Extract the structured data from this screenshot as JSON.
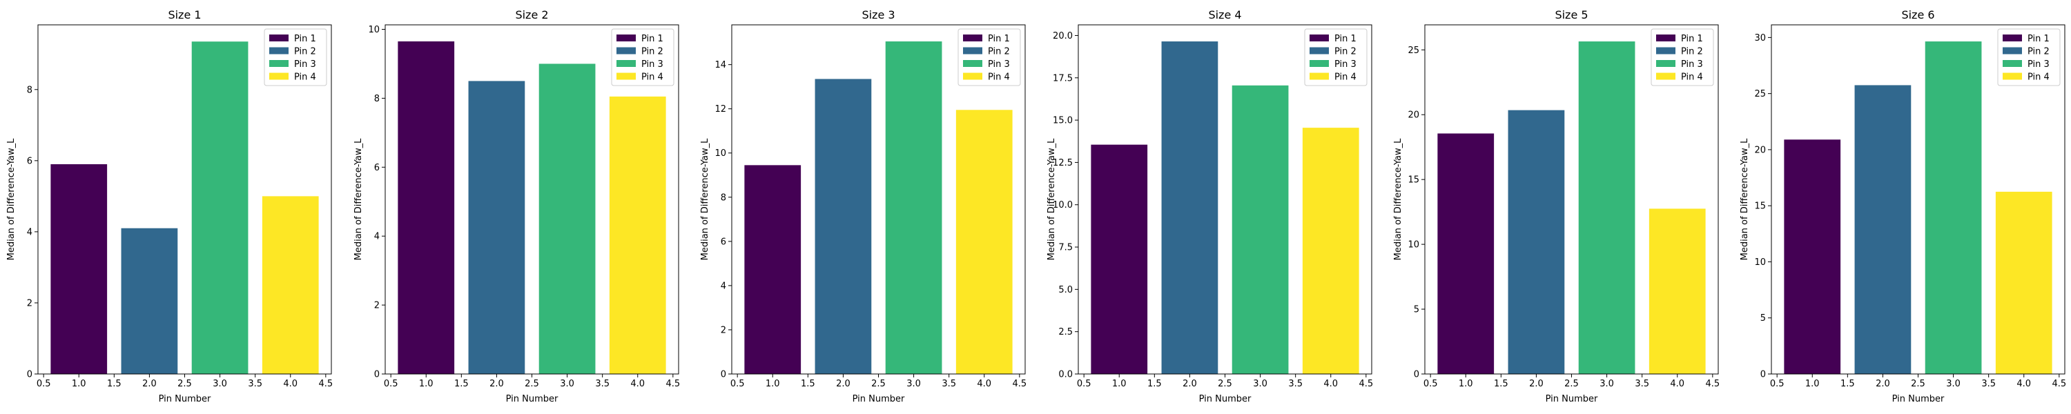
{
  "chart_data": [
    {
      "type": "bar",
      "title": "Size 1",
      "xlabel": "Pin Number",
      "ylabel": "Median of Difference-Yaw_L",
      "x": [
        1.0,
        2.0,
        3.0,
        4.0
      ],
      "values": [
        5.9,
        4.1,
        9.35,
        5.0
      ],
      "legend": [
        "Pin 1",
        "Pin 2",
        "Pin 3",
        "Pin 4"
      ],
      "xlim": [
        0.42,
        4.58
      ],
      "xticks": [
        0.5,
        1.0,
        1.5,
        2.0,
        2.5,
        3.0,
        3.5,
        4.0,
        4.5
      ],
      "xtick_labels": [
        "0.5",
        "1.0",
        "1.5",
        "2.0",
        "2.5",
        "3.0",
        "3.5",
        "4.0",
        "4.5"
      ],
      "ylim": [
        0,
        9.82
      ],
      "yticks": [
        0,
        2,
        4,
        6,
        8
      ],
      "ytick_labels": [
        "0",
        "2",
        "4",
        "6",
        "8"
      ],
      "legend_position": "top-right",
      "grid": false
    },
    {
      "type": "bar",
      "title": "Size 2",
      "xlabel": "Pin Number",
      "ylabel": "Median of Difference-Yaw_L",
      "x": [
        1.0,
        2.0,
        3.0,
        4.0
      ],
      "values": [
        9.65,
        8.5,
        9.0,
        8.05
      ],
      "legend": [
        "Pin 1",
        "Pin 2",
        "Pin 3",
        "Pin 4"
      ],
      "xlim": [
        0.42,
        4.58
      ],
      "xticks": [
        0.5,
        1.0,
        1.5,
        2.0,
        2.5,
        3.0,
        3.5,
        4.0,
        4.5
      ],
      "xtick_labels": [
        "0.5",
        "1.0",
        "1.5",
        "2.0",
        "2.5",
        "3.0",
        "3.5",
        "4.0",
        "4.5"
      ],
      "ylim": [
        0,
        10.13
      ],
      "yticks": [
        0,
        2,
        4,
        6,
        8,
        10
      ],
      "ytick_labels": [
        "0",
        "2",
        "4",
        "6",
        "8",
        "10"
      ],
      "legend_position": "top-right",
      "grid": false
    },
    {
      "type": "bar",
      "title": "Size 3",
      "xlabel": "Pin Number",
      "ylabel": "Median of Difference-Yaw_L",
      "x": [
        1.0,
        2.0,
        3.0,
        4.0
      ],
      "values": [
        9.45,
        13.35,
        15.05,
        11.95
      ],
      "legend": [
        "Pin 1",
        "Pin 2",
        "Pin 3",
        "Pin 4"
      ],
      "xlim": [
        0.42,
        4.58
      ],
      "xticks": [
        0.5,
        1.0,
        1.5,
        2.0,
        2.5,
        3.0,
        3.5,
        4.0,
        4.5
      ],
      "xtick_labels": [
        "0.5",
        "1.0",
        "1.5",
        "2.0",
        "2.5",
        "3.0",
        "3.5",
        "4.0",
        "4.5"
      ],
      "ylim": [
        0,
        15.8
      ],
      "yticks": [
        0,
        2,
        4,
        6,
        8,
        10,
        12,
        14
      ],
      "ytick_labels": [
        "0",
        "2",
        "4",
        "6",
        "8",
        "10",
        "12",
        "14"
      ],
      "legend_position": "top-right",
      "grid": false
    },
    {
      "type": "bar",
      "title": "Size 4",
      "xlabel": "Pin Number",
      "ylabel": "Median of Difference-Yaw_L",
      "x": [
        1.0,
        2.0,
        3.0,
        4.0
      ],
      "values": [
        13.55,
        19.65,
        17.05,
        14.55
      ],
      "legend": [
        "Pin 1",
        "Pin 2",
        "Pin 3",
        "Pin 4"
      ],
      "xlim": [
        0.42,
        4.58
      ],
      "xticks": [
        0.5,
        1.0,
        1.5,
        2.0,
        2.5,
        3.0,
        3.5,
        4.0,
        4.5
      ],
      "xtick_labels": [
        "0.5",
        "1.0",
        "1.5",
        "2.0",
        "2.5",
        "3.0",
        "3.5",
        "4.0",
        "4.5"
      ],
      "ylim": [
        0,
        20.63
      ],
      "yticks": [
        0,
        2.5,
        5,
        7.5,
        10,
        12.5,
        15,
        17.5,
        20
      ],
      "ytick_labels": [
        "0.0",
        "2.5",
        "5.0",
        "7.5",
        "10.0",
        "12.5",
        "15.0",
        "17.5",
        "20.0"
      ],
      "legend_position": "top-right",
      "grid": false
    },
    {
      "type": "bar",
      "title": "Size 5",
      "xlabel": "Pin Number",
      "ylabel": "Median of Difference-Yaw_L",
      "x": [
        1.0,
        2.0,
        3.0,
        4.0
      ],
      "values": [
        18.55,
        20.35,
        25.65,
        12.75
      ],
      "legend": [
        "Pin 1",
        "Pin 2",
        "Pin 3",
        "Pin 4"
      ],
      "xlim": [
        0.42,
        4.58
      ],
      "xticks": [
        0.5,
        1.0,
        1.5,
        2.0,
        2.5,
        3.0,
        3.5,
        4.0,
        4.5
      ],
      "xtick_labels": [
        "0.5",
        "1.0",
        "1.5",
        "2.0",
        "2.5",
        "3.0",
        "3.5",
        "4.0",
        "4.5"
      ],
      "ylim": [
        0,
        26.93
      ],
      "yticks": [
        0,
        5,
        10,
        15,
        20,
        25
      ],
      "ytick_labels": [
        "0",
        "5",
        "10",
        "15",
        "20",
        "25"
      ],
      "legend_position": "top-right",
      "grid": false
    },
    {
      "type": "bar",
      "title": "Size 6",
      "xlabel": "Pin Number",
      "ylabel": "Median of Difference-Yaw_L",
      "x": [
        1.0,
        2.0,
        3.0,
        4.0
      ],
      "values": [
        20.9,
        25.75,
        29.65,
        16.25
      ],
      "legend": [
        "Pin 1",
        "Pin 2",
        "Pin 3",
        "Pin 4"
      ],
      "xlim": [
        0.42,
        4.58
      ],
      "xticks": [
        0.5,
        1.0,
        1.5,
        2.0,
        2.5,
        3.0,
        3.5,
        4.0,
        4.5
      ],
      "xtick_labels": [
        "0.5",
        "1.0",
        "1.5",
        "2.0",
        "2.5",
        "3.0",
        "3.5",
        "4.0",
        "4.5"
      ],
      "ylim": [
        0,
        31.13
      ],
      "yticks": [
        0,
        5,
        10,
        15,
        20,
        25,
        30
      ],
      "ytick_labels": [
        "0",
        "5",
        "10",
        "15",
        "20",
        "25",
        "30"
      ],
      "legend_position": "top-right",
      "grid": false
    }
  ],
  "colors": [
    "#440154",
    "#31688e",
    "#35b779",
    "#fde725"
  ]
}
